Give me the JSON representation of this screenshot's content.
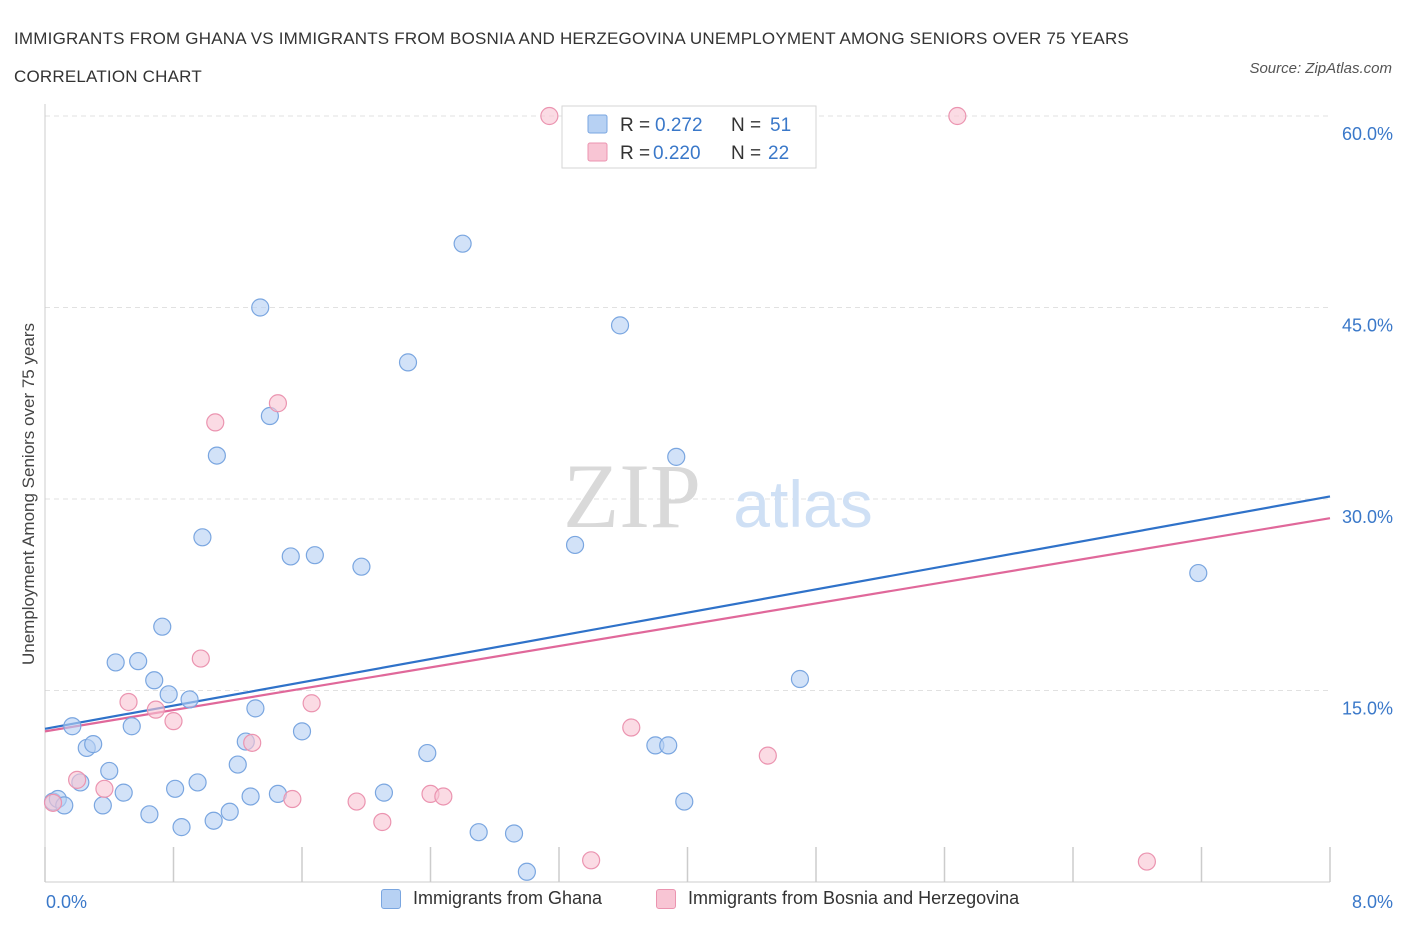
{
  "title": "IMMIGRANTS FROM GHANA VS IMMIGRANTS FROM BOSNIA AND HERZEGOVINA UNEMPLOYMENT AMONG SENIORS OVER 75 YEARS CORRELATION CHART",
  "source": "Source: ZipAtlas.com",
  "watermark": {
    "zip": "ZIP",
    "atlas": "atlas"
  },
  "colors": {
    "ghana_fill": "#b7d1f3",
    "ghana_stroke": "#7aa6e0",
    "ghana_line": "#2f72c9",
    "bosnia_fill": "#f8c5d4",
    "bosnia_stroke": "#eb94b0",
    "bosnia_line": "#e0689a",
    "grid": "#e1e1e1",
    "axis_text": "#3a78c9"
  },
  "legend": {
    "rows": [
      {
        "r_label": "R = ",
        "r_value": "0.272",
        "n_label": "N = ",
        "n_value": "51"
      },
      {
        "r_label": "R = ",
        "r_value": "0.220",
        "n_label": "N = ",
        "n_value": "22"
      }
    ]
  },
  "chart_data": {
    "type": "scatter",
    "xlabel": "",
    "ylabel": "Unemployment Among Seniors over 75 years",
    "xlim": [
      0,
      8
    ],
    "ylim": [
      0,
      60
    ],
    "x_tick_labels": [
      "0.0%",
      "8.0%"
    ],
    "y_tick_labels": [
      "15.0%",
      "30.0%",
      "45.0%",
      "60.0%"
    ],
    "y_ticks": [
      15,
      30,
      45,
      60
    ],
    "grid": true,
    "legend_position": "top-center",
    "series": [
      {
        "name": "Immigrants from Ghana",
        "trend": {
          "x": [
            0,
            8
          ],
          "y": [
            12.0,
            30.2
          ]
        },
        "points": [
          [
            0.05,
            6.3
          ],
          [
            0.08,
            6.5
          ],
          [
            0.12,
            6.0
          ],
          [
            0.17,
            12.2
          ],
          [
            0.22,
            7.8
          ],
          [
            0.26,
            10.5
          ],
          [
            0.3,
            10.8
          ],
          [
            0.36,
            6.0
          ],
          [
            0.4,
            8.7
          ],
          [
            0.44,
            17.2
          ],
          [
            0.49,
            7.0
          ],
          [
            0.54,
            12.2
          ],
          [
            0.58,
            17.3
          ],
          [
            0.65,
            5.3
          ],
          [
            0.68,
            15.8
          ],
          [
            0.73,
            20.0
          ],
          [
            0.77,
            14.7
          ],
          [
            0.81,
            7.3
          ],
          [
            0.85,
            4.3
          ],
          [
            0.9,
            14.3
          ],
          [
            0.95,
            7.8
          ],
          [
            0.98,
            27.0
          ],
          [
            1.05,
            4.8
          ],
          [
            1.07,
            33.4
          ],
          [
            1.15,
            5.5
          ],
          [
            1.2,
            9.2
          ],
          [
            1.25,
            11.0
          ],
          [
            1.28,
            6.7
          ],
          [
            1.31,
            13.6
          ],
          [
            1.34,
            45.0
          ],
          [
            1.4,
            36.5
          ],
          [
            1.45,
            6.9
          ],
          [
            1.53,
            25.5
          ],
          [
            1.6,
            11.8
          ],
          [
            1.68,
            25.6
          ],
          [
            1.97,
            24.7
          ],
          [
            2.11,
            7.0
          ],
          [
            2.26,
            40.7
          ],
          [
            2.38,
            10.1
          ],
          [
            2.6,
            50.0
          ],
          [
            2.7,
            3.9
          ],
          [
            2.92,
            3.8
          ],
          [
            3.0,
            0.8
          ],
          [
            3.3,
            26.4
          ],
          [
            3.58,
            43.6
          ],
          [
            3.8,
            10.7
          ],
          [
            3.88,
            10.7
          ],
          [
            3.93,
            33.3
          ],
          [
            3.98,
            6.3
          ],
          [
            4.7,
            15.9
          ],
          [
            7.18,
            24.2
          ]
        ]
      },
      {
        "name": "Immigrants from Bosnia and Herzegovina",
        "trend": {
          "x": [
            0,
            8
          ],
          "y": [
            11.8,
            28.5
          ]
        },
        "points": [
          [
            0.05,
            6.2
          ],
          [
            0.2,
            8.0
          ],
          [
            0.37,
            7.3
          ],
          [
            0.52,
            14.1
          ],
          [
            0.69,
            13.5
          ],
          [
            0.8,
            12.6
          ],
          [
            0.97,
            17.5
          ],
          [
            1.06,
            36.0
          ],
          [
            1.29,
            10.9
          ],
          [
            1.45,
            37.5
          ],
          [
            1.54,
            6.5
          ],
          [
            1.66,
            14.0
          ],
          [
            1.94,
            6.3
          ],
          [
            2.1,
            4.7
          ],
          [
            2.4,
            6.9
          ],
          [
            2.48,
            6.7
          ],
          [
            3.14,
            60.0
          ],
          [
            3.4,
            1.7
          ],
          [
            3.65,
            12.1
          ],
          [
            4.5,
            9.9
          ],
          [
            5.68,
            60.0
          ],
          [
            6.86,
            1.6
          ]
        ]
      }
    ]
  }
}
